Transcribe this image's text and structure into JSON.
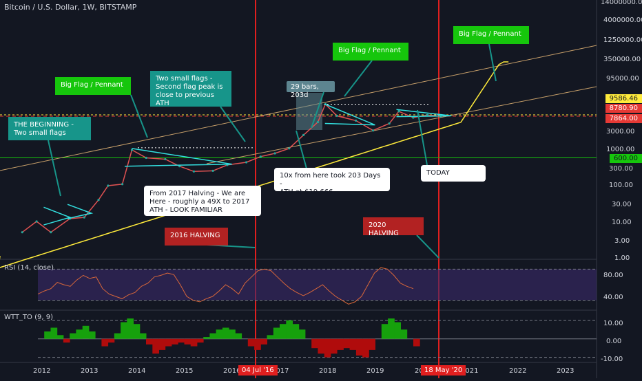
{
  "header": {
    "title": "Bitcoin / U.S. Dollar, 1W, BITSTAMP"
  },
  "chart_data": [
    {
      "type": "line",
      "name": "price",
      "yscale": "log",
      "y_ticks": [
        "14000000.00",
        "4000000.00",
        "1250000.00",
        "350000.00",
        "95000.00",
        "3000.00",
        "1000.00",
        "300.00",
        "100.00",
        "30.00",
        "10.00",
        "3.00",
        "1.00"
      ],
      "x_ticks": [
        "2012",
        "2013",
        "2014",
        "2015",
        "2016",
        "2017",
        "2018",
        "2019",
        "20",
        "2021",
        "2022",
        "2023"
      ],
      "price_tags": [
        {
          "label": "9586.46",
          "color": "#ffeb3b",
          "text_color": "#131722"
        },
        {
          "label": "8780.90",
          "color": "#e53935",
          "text_color": "#ffffff"
        },
        {
          "label": "7864.00",
          "color": "#e53935",
          "text_color": "#ffffff"
        },
        {
          "label": "600.00",
          "color": "#16c60c",
          "text_color": "#131722"
        }
      ],
      "date_markers": [
        "04 Jul '16",
        "18 May '20"
      ],
      "series": [
        {
          "x": [
            2011.6,
            2011.9,
            2012.2,
            2012.6,
            2012.9,
            2013.2,
            2013.4,
            2013.7,
            2013.9,
            2014.2,
            2014.6,
            2014.9,
            2015.2,
            2015.6,
            2015.9,
            2016.3,
            2016.6,
            2016.9,
            2017.2,
            2017.5,
            2017.8,
            2017.96,
            2018.2,
            2018.6,
            2018.96,
            2019.3,
            2019.5,
            2019.8,
            2020.1,
            2020.38
          ],
          "values": [
            5,
            10,
            5,
            12,
            13,
            40,
            100,
            110,
            1000,
            600,
            550,
            350,
            250,
            260,
            380,
            450,
            650,
            800,
            1100,
            2600,
            6000,
            19000,
            9000,
            6600,
            3500,
            5500,
            12000,
            8000,
            9500,
            8800
          ]
        }
      ],
      "annotations": [
        {
          "id": "beginning",
          "text": "THE BEGINNING -\nTwo small flags"
        },
        {
          "id": "flag1",
          "text": "Big Flag / Pennant"
        },
        {
          "id": "small_flags",
          "text": "Two small flags -\nSecond flag peak is\nclose to previous\nATH"
        },
        {
          "id": "halving2017",
          "text": "From 2017 Halving - We are\nHere - roughly a 49X to 2017\nATH - LOOK FAMILIAR"
        },
        {
          "id": "halving2016",
          "text": "2016 HALVING"
        },
        {
          "id": "bars",
          "text": "29 bars, 203d"
        },
        {
          "id": "flag2",
          "text": "Big Flag / Pennant"
        },
        {
          "id": "tenx",
          "text": "10x from here took 203 Days -\nATH at $19,666"
        },
        {
          "id": "flag3",
          "text": "Big Flag / Pennant"
        },
        {
          "id": "today",
          "text": "TODAY"
        },
        {
          "id": "halving2020",
          "text": "2020 HALVING"
        }
      ]
    },
    {
      "type": "line",
      "name": "RSI (14, close)",
      "label": "RSI (14, close)",
      "y_ticks": [
        "80.00",
        "40.00"
      ],
      "ylim": [
        30,
        90
      ],
      "values": [
        48,
        52,
        55,
        63,
        60,
        58,
        66,
        72,
        68,
        70,
        55,
        48,
        45,
        42,
        47,
        50,
        58,
        62,
        70,
        72,
        75,
        73,
        60,
        45,
        40,
        38,
        42,
        45,
        52,
        60,
        55,
        48,
        62,
        70,
        78,
        80,
        78,
        70,
        62,
        55,
        50,
        46,
        50,
        55,
        60,
        52,
        45,
        40,
        35,
        38,
        45,
        60,
        75,
        82,
        80,
        72,
        62,
        58,
        55
      ]
    },
    {
      "type": "area",
      "name": "WTT_TO (9, 9)",
      "label": "WTT_TO (9, 9)",
      "y_ticks": [
        "10.00",
        "0.00",
        "-10.00"
      ],
      "ylim": [
        -12,
        14
      ],
      "values": [
        0,
        4,
        6,
        2,
        -2,
        3,
        5,
        7,
        4,
        0,
        -4,
        -2,
        3,
        9,
        11,
        8,
        3,
        -3,
        -8,
        -6,
        -4,
        -3,
        -2,
        -3,
        -4,
        -2,
        1,
        3,
        5,
        6,
        5,
        3,
        0,
        -4,
        -6,
        -3,
        2,
        6,
        8,
        10,
        8,
        5,
        0,
        -5,
        -8,
        -10,
        -8,
        -6,
        -5,
        -6,
        -9,
        -10,
        -6,
        0,
        8,
        11,
        9,
        5,
        0,
        -4
      ]
    }
  ]
}
